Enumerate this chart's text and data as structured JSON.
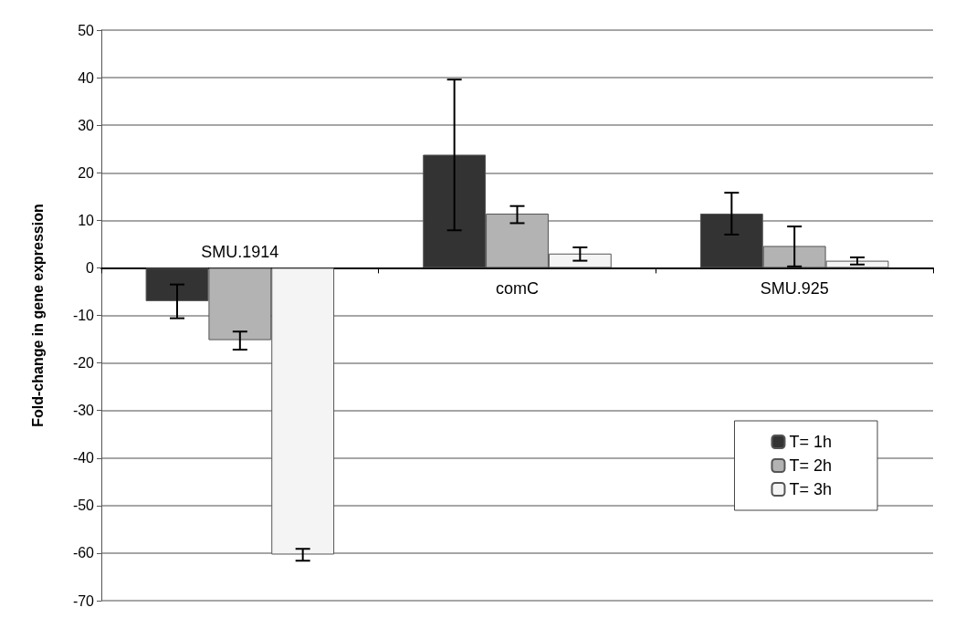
{
  "chart_data": {
    "type": "bar",
    "ylabel": "Fold-change in gene expression",
    "categories": [
      "SMU.1914",
      "comC",
      "SMU.925"
    ],
    "series": [
      {
        "name": "T= 1h",
        "color": "#333333",
        "values": [
          -7.0,
          23.8,
          11.4
        ],
        "errors": [
          [
            -10.6,
            -3.5
          ],
          [
            7.9,
            39.6
          ],
          [
            7.0,
            15.8
          ]
        ]
      },
      {
        "name": "T= 2h",
        "color": "#b3b3b3",
        "values": [
          -15.2,
          11.4,
          4.6
        ],
        "errors": [
          [
            -17.2,
            -13.4
          ],
          [
            9.4,
            13.0
          ],
          [
            0.3,
            8.7
          ]
        ]
      },
      {
        "name": "T= 3h",
        "color": "#f4f4f4",
        "values": [
          -60.3,
          3.0,
          1.5
        ],
        "errors": [
          [
            -61.6,
            -59.1
          ],
          [
            1.5,
            4.3
          ],
          [
            0.7,
            2.2
          ]
        ]
      }
    ],
    "ylim": [
      -70,
      50
    ],
    "yticks": [
      -70,
      -60,
      -50,
      -40,
      -30,
      -20,
      -10,
      0,
      10,
      20,
      30,
      40,
      50
    ],
    "grid": "y",
    "legend": "bottom right"
  }
}
